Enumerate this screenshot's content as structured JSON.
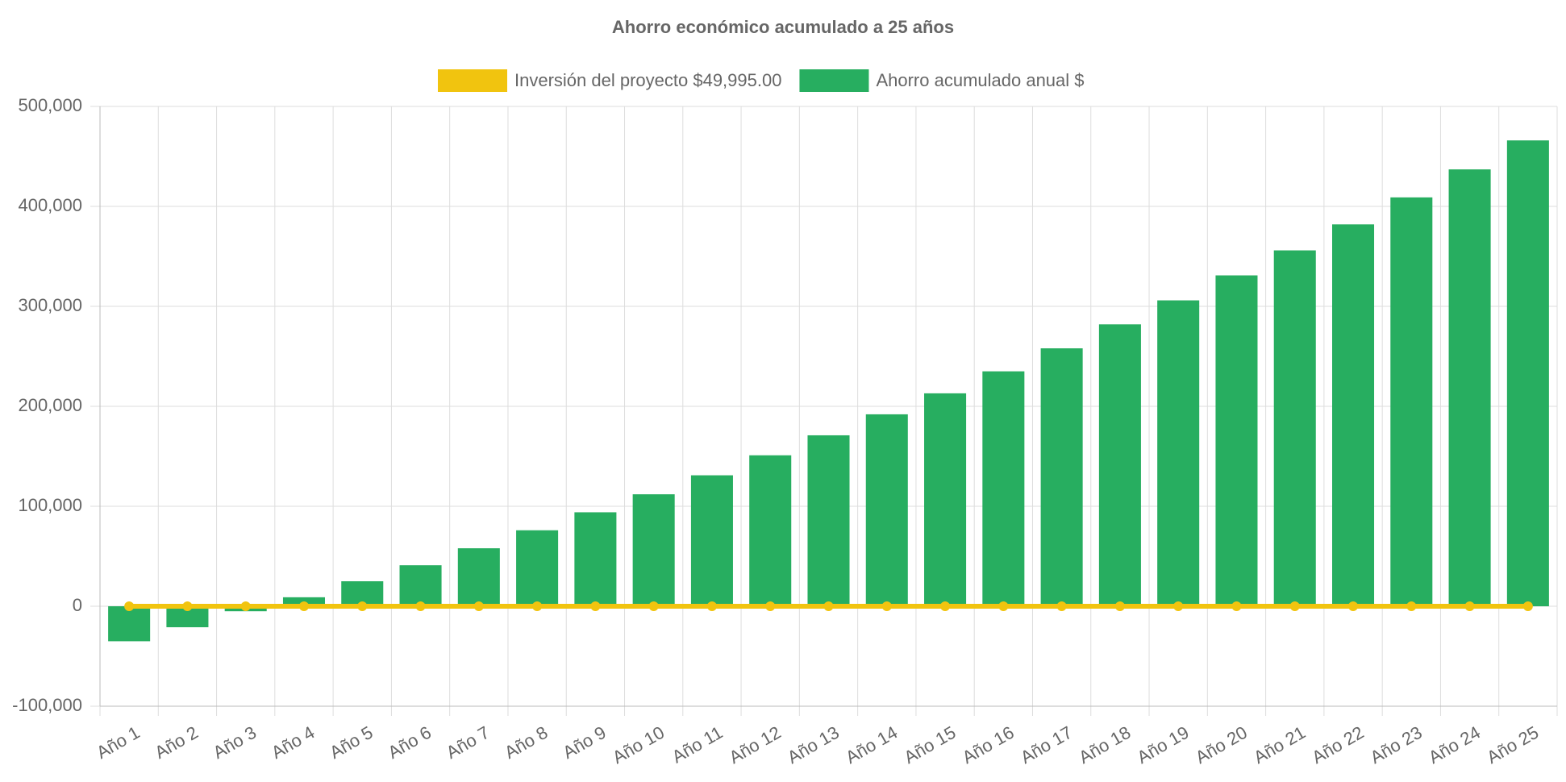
{
  "chart_data": {
    "type": "bar",
    "title": "Ahorro económico acumulado a 25 años",
    "categories": [
      "Año 1",
      "Año 2",
      "Año 3",
      "Año 4",
      "Año 5",
      "Año 6",
      "Año 7",
      "Año 8",
      "Año 9",
      "Año 10",
      "Año 11",
      "Año 12",
      "Año 13",
      "Año 14",
      "Año 15",
      "Año 16",
      "Año 17",
      "Año 18",
      "Año 19",
      "Año 20",
      "Año 21",
      "Año 22",
      "Año 23",
      "Año 24",
      "Año 25"
    ],
    "series": [
      {
        "name": "Inversión del proyecto $49,995.00",
        "type": "line",
        "color": "#f1c40f",
        "values": [
          0,
          0,
          0,
          0,
          0,
          0,
          0,
          0,
          0,
          0,
          0,
          0,
          0,
          0,
          0,
          0,
          0,
          0,
          0,
          0,
          0,
          0,
          0,
          0,
          0
        ]
      },
      {
        "name": "Ahorro acumulado anual $",
        "type": "bar",
        "color": "#27ae60",
        "values": [
          -35000,
          -21000,
          -5000,
          9000,
          25000,
          41000,
          58000,
          76000,
          94000,
          112000,
          131000,
          151000,
          171000,
          192000,
          213000,
          235000,
          258000,
          282000,
          306000,
          331000,
          356000,
          382000,
          409000,
          437000,
          466000
        ]
      }
    ],
    "ylim": [
      -100000,
      500000
    ],
    "yticks": [
      {
        "value": -100000,
        "label": "-100,000"
      },
      0,
      {
        "value": 100000,
        "label": "100,000"
      },
      {
        "value": 200000,
        "label": "200,000"
      },
      {
        "value": 300000,
        "label": "300,000"
      },
      {
        "value": 400000,
        "label": "400,000"
      },
      {
        "value": 500000,
        "label": "500,000"
      }
    ],
    "grid": true
  }
}
